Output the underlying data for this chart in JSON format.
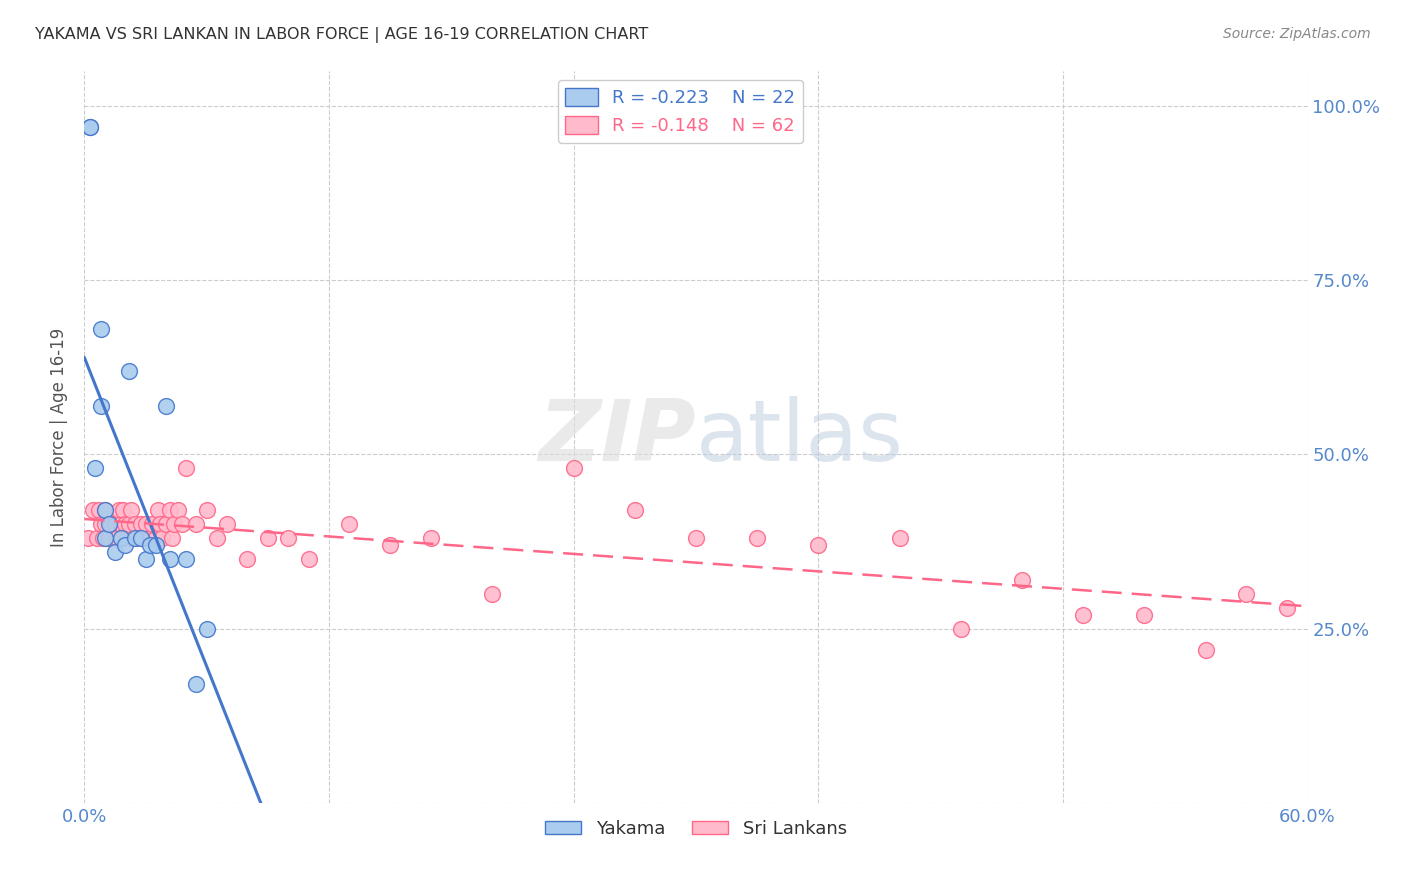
{
  "title": "YAKAMA VS SRI LANKAN IN LABOR FORCE | AGE 16-19 CORRELATION CHART",
  "source": "Source: ZipAtlas.com",
  "ylabel": "In Labor Force | Age 16-19",
  "xlim": [
    0.0,
    0.6
  ],
  "ylim": [
    0.0,
    1.05
  ],
  "background_color": "#ffffff",
  "grid_color": "#cccccc",
  "yakama_color": "#aaccee",
  "sri_lankan_color": "#ffbbcc",
  "yakama_line_color": "#4477cc",
  "sri_lankan_line_color": "#ff6688",
  "legend_r_yakama": "-0.223",
  "legend_n_yakama": "22",
  "legend_r_sri": "-0.148",
  "legend_n_sri": "62",
  "tick_color": "#5588cc",
  "title_color": "#333333",
  "axis_label_color": "#555555",
  "yakama_x": [
    0.003,
    0.003,
    0.005,
    0.008,
    0.008,
    0.01,
    0.01,
    0.012,
    0.015,
    0.018,
    0.02,
    0.022,
    0.025,
    0.028,
    0.03,
    0.032,
    0.035,
    0.04,
    0.042,
    0.05,
    0.055,
    0.06
  ],
  "yakama_y": [
    0.97,
    0.97,
    0.48,
    0.68,
    0.57,
    0.42,
    0.38,
    0.4,
    0.36,
    0.38,
    0.37,
    0.62,
    0.38,
    0.38,
    0.35,
    0.37,
    0.37,
    0.57,
    0.35,
    0.35,
    0.17,
    0.25
  ],
  "sri_lankan_x": [
    0.002,
    0.004,
    0.006,
    0.007,
    0.008,
    0.009,
    0.01,
    0.01,
    0.012,
    0.013,
    0.015,
    0.016,
    0.017,
    0.018,
    0.019,
    0.02,
    0.021,
    0.022,
    0.023,
    0.025,
    0.026,
    0.028,
    0.029,
    0.03,
    0.032,
    0.033,
    0.035,
    0.036,
    0.037,
    0.038,
    0.04,
    0.042,
    0.043,
    0.044,
    0.046,
    0.048,
    0.05,
    0.055,
    0.06,
    0.065,
    0.07,
    0.08,
    0.09,
    0.1,
    0.11,
    0.13,
    0.15,
    0.17,
    0.2,
    0.24,
    0.27,
    0.3,
    0.33,
    0.36,
    0.4,
    0.43,
    0.46,
    0.49,
    0.52,
    0.55,
    0.57,
    0.59
  ],
  "sri_lankan_y": [
    0.38,
    0.42,
    0.38,
    0.42,
    0.4,
    0.38,
    0.4,
    0.42,
    0.38,
    0.4,
    0.4,
    0.38,
    0.42,
    0.4,
    0.42,
    0.4,
    0.38,
    0.4,
    0.42,
    0.4,
    0.38,
    0.4,
    0.38,
    0.4,
    0.38,
    0.4,
    0.38,
    0.42,
    0.4,
    0.38,
    0.4,
    0.42,
    0.38,
    0.4,
    0.42,
    0.4,
    0.48,
    0.4,
    0.42,
    0.38,
    0.4,
    0.35,
    0.38,
    0.38,
    0.35,
    0.4,
    0.37,
    0.38,
    0.3,
    0.48,
    0.42,
    0.38,
    0.38,
    0.37,
    0.38,
    0.25,
    0.32,
    0.27,
    0.27,
    0.22,
    0.3,
    0.28
  ]
}
